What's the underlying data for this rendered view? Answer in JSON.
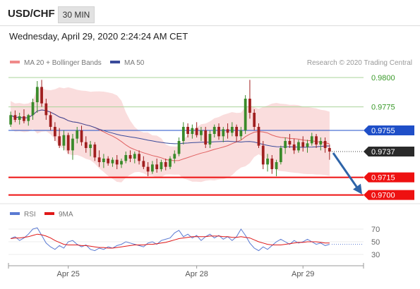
{
  "header": {
    "pair": "USD/CHF",
    "timeframe": "30 MIN"
  },
  "timestamp": "Wednesday, April 29, 2020 2:24:24 AM CET",
  "colors": {
    "candle_up": "#3a8a2a",
    "candle_down": "#a01f1f",
    "bollinger": "#f5b3b3",
    "ma20": "#e06060",
    "ma50": "#3a4a9a",
    "level_green": "#aad39a",
    "resistance_blue": "#1f4fc8",
    "support_red": "#ee1111",
    "arrow": "#2e64a8",
    "rsi": "#5a7ad2",
    "rsi_ma": "#e01818"
  },
  "chart_data": [
    {
      "type": "candlestick",
      "legend": [
        "MA 20 + Bollinger Bands",
        "MA 50"
      ],
      "watermark": "Research © 2020 Trading Central",
      "ylim": [
        0.9695,
        0.9806
      ],
      "x_ticks": [
        "Apr 25",
        "Apr 28",
        "Apr 29"
      ],
      "levels": [
        {
          "label": "0.9800",
          "value": 0.98,
          "kind": "target"
        },
        {
          "label": "0.9775",
          "value": 0.9775,
          "kind": "target"
        },
        {
          "label": "0.9755",
          "value": 0.9755,
          "kind": "resistance"
        },
        {
          "label": "0.9737",
          "value": 0.9737,
          "kind": "last"
        },
        {
          "label": "0.9715",
          "value": 0.9715,
          "kind": "support"
        },
        {
          "label": "0.9700",
          "value": 0.97,
          "kind": "support"
        }
      ],
      "forecast_arrow": {
        "from": 0.9737,
        "to": 0.97
      },
      "candles": [
        [
          0.976,
          0.9771,
          0.9758,
          0.9768
        ],
        [
          0.9768,
          0.9772,
          0.9762,
          0.9764
        ],
        [
          0.9764,
          0.977,
          0.976,
          0.9767
        ],
        [
          0.9767,
          0.9773,
          0.9761,
          0.9763
        ],
        [
          0.9763,
          0.9769,
          0.9759,
          0.9768
        ],
        [
          0.9768,
          0.9782,
          0.9764,
          0.9779
        ],
        [
          0.9779,
          0.9797,
          0.977,
          0.9792
        ],
        [
          0.9792,
          0.9798,
          0.9775,
          0.9778
        ],
        [
          0.9778,
          0.9782,
          0.9764,
          0.9768
        ],
        [
          0.9768,
          0.9771,
          0.9755,
          0.9758
        ],
        [
          0.9758,
          0.9762,
          0.9746,
          0.975
        ],
        [
          0.975,
          0.9757,
          0.974,
          0.9742
        ],
        [
          0.9742,
          0.9755,
          0.9738,
          0.9751
        ],
        [
          0.9751,
          0.9753,
          0.9735,
          0.9738
        ],
        [
          0.9738,
          0.9752,
          0.973,
          0.9748
        ],
        [
          0.9748,
          0.9758,
          0.9744,
          0.9755
        ],
        [
          0.9755,
          0.9759,
          0.9742,
          0.9745
        ],
        [
          0.9745,
          0.975,
          0.9736,
          0.974
        ],
        [
          0.974,
          0.9746,
          0.9733,
          0.9743
        ],
        [
          0.9743,
          0.9745,
          0.9729,
          0.9732
        ],
        [
          0.9732,
          0.9738,
          0.9724,
          0.9728
        ],
        [
          0.9728,
          0.9735,
          0.9723,
          0.9731
        ],
        [
          0.9731,
          0.9733,
          0.9725,
          0.9727
        ],
        [
          0.9727,
          0.9732,
          0.9724,
          0.973
        ],
        [
          0.973,
          0.9734,
          0.9722,
          0.9726
        ],
        [
          0.9726,
          0.9731,
          0.9723,
          0.9729
        ],
        [
          0.9729,
          0.9737,
          0.9727,
          0.9734
        ],
        [
          0.9734,
          0.9738,
          0.9728,
          0.9731
        ],
        [
          0.9731,
          0.9737,
          0.9727,
          0.9735
        ],
        [
          0.9735,
          0.9738,
          0.9726,
          0.9729
        ],
        [
          0.9729,
          0.9733,
          0.9722,
          0.9724
        ],
        [
          0.9724,
          0.9728,
          0.9716,
          0.972
        ],
        [
          0.972,
          0.9729,
          0.9718,
          0.9726
        ],
        [
          0.9726,
          0.9731,
          0.9719,
          0.9722
        ],
        [
          0.9722,
          0.973,
          0.972,
          0.9728
        ],
        [
          0.9728,
          0.9731,
          0.9721,
          0.9724
        ],
        [
          0.9724,
          0.9733,
          0.9722,
          0.9731
        ],
        [
          0.9731,
          0.9738,
          0.9727,
          0.9735
        ],
        [
          0.9735,
          0.9749,
          0.9733,
          0.9746
        ],
        [
          0.9746,
          0.9762,
          0.9743,
          0.9758
        ],
        [
          0.9758,
          0.9761,
          0.9749,
          0.9752
        ],
        [
          0.9752,
          0.976,
          0.9748,
          0.9757
        ],
        [
          0.9757,
          0.9762,
          0.9749,
          0.9751
        ],
        [
          0.9751,
          0.9758,
          0.9746,
          0.9755
        ],
        [
          0.9755,
          0.9758,
          0.974,
          0.9743
        ],
        [
          0.9743,
          0.9755,
          0.974,
          0.9752
        ],
        [
          0.9752,
          0.976,
          0.9749,
          0.9758
        ],
        [
          0.9758,
          0.9761,
          0.9747,
          0.975
        ],
        [
          0.975,
          0.9758,
          0.9745,
          0.9756
        ],
        [
          0.9756,
          0.9761,
          0.9748,
          0.9753
        ],
        [
          0.9753,
          0.9762,
          0.975,
          0.9758
        ],
        [
          0.9758,
          0.976,
          0.9745,
          0.975
        ],
        [
          0.975,
          0.9758,
          0.9747,
          0.9755
        ],
        [
          0.9755,
          0.9785,
          0.9752,
          0.9782
        ],
        [
          0.9782,
          0.9798,
          0.9765,
          0.977
        ],
        [
          0.977,
          0.9773,
          0.9755,
          0.9758
        ],
        [
          0.9758,
          0.9761,
          0.974,
          0.9742
        ],
        [
          0.9742,
          0.9746,
          0.9722,
          0.9726
        ],
        [
          0.9726,
          0.9735,
          0.972,
          0.9731
        ],
        [
          0.9731,
          0.9734,
          0.9718,
          0.9722
        ],
        [
          0.9722,
          0.973,
          0.9716,
          0.9728
        ],
        [
          0.9728,
          0.9742,
          0.9726,
          0.974
        ],
        [
          0.974,
          0.9749,
          0.9735,
          0.9746
        ],
        [
          0.9746,
          0.9752,
          0.974,
          0.9743
        ],
        [
          0.9743,
          0.9748,
          0.9735,
          0.9738
        ],
        [
          0.9738,
          0.9747,
          0.9736,
          0.9745
        ],
        [
          0.9745,
          0.975,
          0.9737,
          0.9741
        ],
        [
          0.9741,
          0.9747,
          0.9736,
          0.9744
        ],
        [
          0.9744,
          0.9753,
          0.9742,
          0.975
        ],
        [
          0.975,
          0.9752,
          0.974,
          0.9743
        ],
        [
          0.9743,
          0.9749,
          0.9738,
          0.9746
        ],
        [
          0.9746,
          0.9749,
          0.9736,
          0.974
        ],
        [
          0.974,
          0.9743,
          0.973,
          0.9737
        ]
      ]
    },
    {
      "type": "line",
      "title": "RSI",
      "series": [
        {
          "name": "RSI",
          "values": [
            55,
            58,
            52,
            56,
            62,
            70,
            72,
            60,
            48,
            42,
            38,
            44,
            40,
            50,
            52,
            46,
            42,
            45,
            38,
            36,
            40,
            38,
            42,
            40,
            44,
            46,
            50,
            48,
            46,
            44,
            42,
            48,
            50,
            46,
            52,
            54,
            56,
            64,
            68,
            58,
            62,
            56,
            60,
            52,
            58,
            62,
            56,
            60,
            54,
            58,
            52,
            58,
            70,
            60,
            48,
            40,
            36,
            42,
            38,
            44,
            50,
            54,
            50,
            46,
            52,
            48,
            50,
            54,
            50,
            46,
            48,
            44,
            46
          ]
        },
        {
          "name": "9MA",
          "values": [
            55,
            56,
            56,
            57,
            58,
            60,
            62,
            61,
            59,
            56,
            52,
            49,
            46,
            45,
            45,
            45,
            44,
            44,
            43,
            42,
            41,
            41,
            40,
            40,
            41,
            42,
            43,
            44,
            45,
            45,
            45,
            46,
            46,
            47,
            48,
            49,
            51,
            53,
            55,
            56,
            57,
            58,
            58,
            58,
            58,
            59,
            59,
            59,
            58,
            58,
            57,
            57,
            58,
            57,
            56,
            53,
            50,
            48,
            46,
            45,
            45,
            45,
            46,
            47,
            48,
            49,
            49,
            50,
            50,
            50,
            49,
            48,
            48
          ]
        }
      ],
      "y_ticks": [
        "70",
        "50",
        "30"
      ],
      "ylim": [
        20,
        80
      ]
    }
  ]
}
